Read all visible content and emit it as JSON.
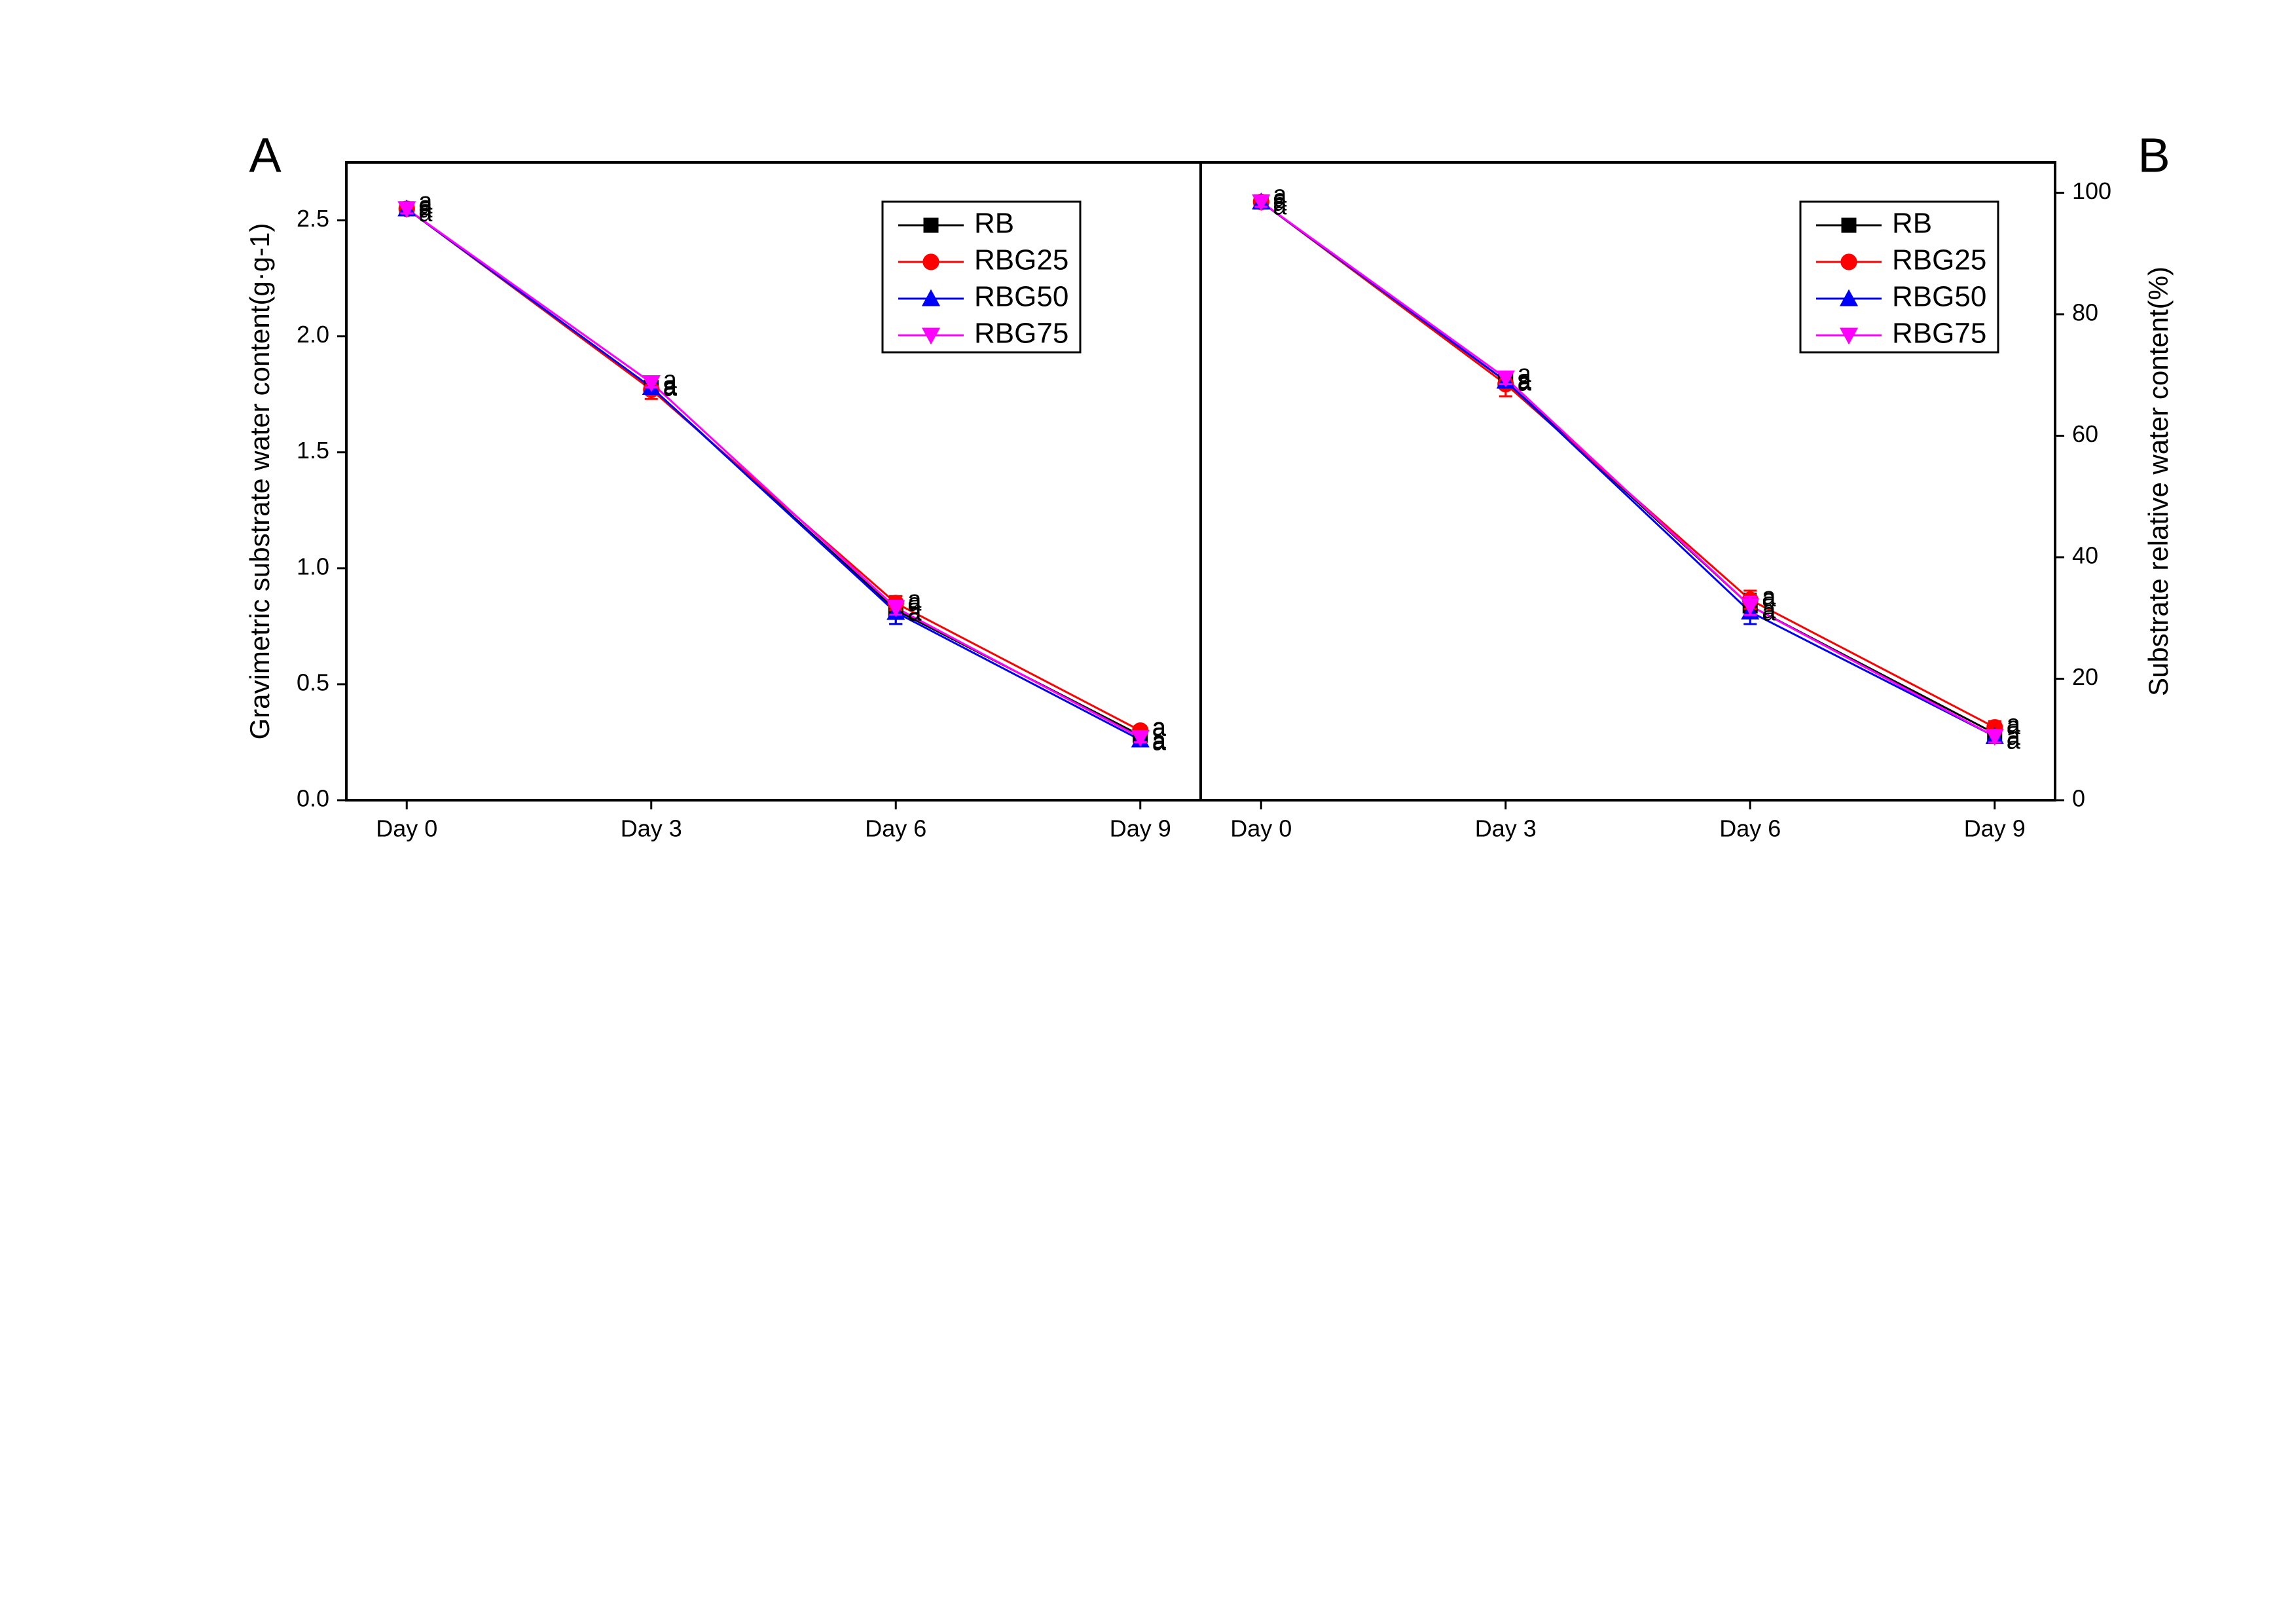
{
  "chart_data": [
    {
      "type": "line",
      "panel_label": "A",
      "ylabel": "Gravimetric substrate water content(g·g-1)",
      "categories": [
        "Day 0",
        "Day 3",
        "Day 6",
        "Day 9"
      ],
      "ylim": [
        0,
        2.75
      ],
      "yticks": [
        {
          "value": 0,
          "label": "0.0"
        },
        0.5,
        {
          "value": 1,
          "label": "1.0"
        },
        1.5,
        {
          "value": 2,
          "label": "2.0"
        },
        2.5
      ],
      "yaxis_side": "left",
      "legend": "upper right",
      "series": [
        {
          "name": "RB",
          "color": "#000000",
          "marker": "square",
          "values": [
            2.55,
            1.78,
            0.82,
            0.28
          ],
          "errors": [
            0.02,
            0.02,
            0.06,
            0.02
          ],
          "labels": [
            "a",
            "a",
            "a",
            "a"
          ]
        },
        {
          "name": "RBG25",
          "color": "#ff0000",
          "marker": "circle",
          "values": [
            2.55,
            1.77,
            0.85,
            0.3
          ],
          "errors": [
            0.02,
            0.04,
            0.03,
            0.02
          ],
          "labels": [
            "a",
            "a",
            "a",
            "a"
          ]
        },
        {
          "name": "RBG50",
          "color": "#0000ff",
          "marker": "triangle-up",
          "values": [
            2.55,
            1.78,
            0.81,
            0.26
          ],
          "errors": [
            0.02,
            0.02,
            0.05,
            0.02
          ],
          "labels": [
            "a",
            "a",
            "a",
            "a"
          ]
        },
        {
          "name": "RBG75",
          "color": "#ff00ff",
          "marker": "triangle-down",
          "values": [
            2.55,
            1.8,
            0.83,
            0.27
          ],
          "errors": [
            0.02,
            0.02,
            0.03,
            0.02
          ],
          "labels": [
            "a",
            "a",
            "a",
            "a"
          ]
        }
      ]
    },
    {
      "type": "line",
      "panel_label": "B",
      "ylabel": "Substrate relative water content(%)",
      "categories": [
        "Day 0",
        "Day 3",
        "Day 6",
        "Day 9"
      ],
      "ylim": [
        0,
        105
      ],
      "yticks": [
        0,
        20,
        40,
        60,
        80,
        100
      ],
      "yaxis_side": "right",
      "legend": "upper right",
      "series": [
        {
          "name": "RB",
          "color": "#000000",
          "marker": "square",
          "values": [
            98.5,
            69,
            32,
            11
          ],
          "errors": [
            0.8,
            1,
            2,
            1
          ],
          "labels": [
            "a",
            "a",
            "a",
            "a"
          ]
        },
        {
          "name": "RBG25",
          "color": "#ff0000",
          "marker": "circle",
          "values": [
            98.5,
            68.5,
            33,
            12
          ],
          "errors": [
            0.8,
            2,
            1.5,
            1
          ],
          "labels": [
            "a",
            "a",
            "a",
            "a"
          ]
        },
        {
          "name": "RBG50",
          "color": "#0000ff",
          "marker": "triangle-up",
          "values": [
            98.5,
            69,
            31,
            10.5
          ],
          "errors": [
            0.8,
            1,
            2,
            1
          ],
          "labels": [
            "a",
            "a",
            "a",
            "a"
          ]
        },
        {
          "name": "RBG75",
          "color": "#ff00ff",
          "marker": "triangle-down",
          "values": [
            98.5,
            69.5,
            32,
            10.5
          ],
          "errors": [
            0.8,
            1,
            1.5,
            1
          ],
          "labels": [
            "a",
            "a",
            "a",
            "a"
          ]
        }
      ]
    }
  ]
}
